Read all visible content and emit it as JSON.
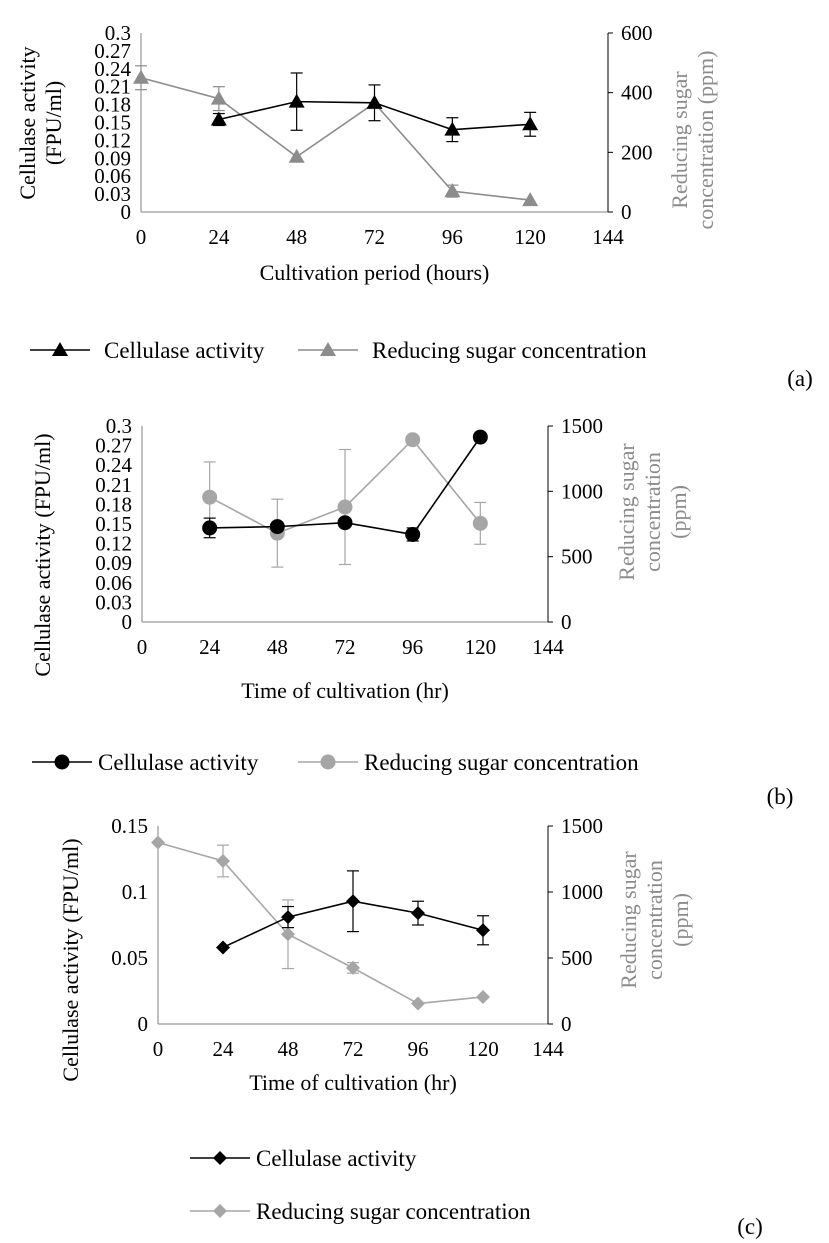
{
  "chart_data": [
    {
      "panel_label": "(a)",
      "type": "line",
      "xlabel": "Cultivation period (hours)",
      "ylabel_left": "Cellulase activity (FPU/ml)",
      "ylabel_right": "Reducing sugar concentration (ppm)",
      "xlim": [
        0,
        144
      ],
      "x_ticks": [
        0,
        24,
        48,
        72,
        96,
        120,
        144
      ],
      "ylim_left": [
        0,
        0.3
      ],
      "y_ticks_left": [
        "0",
        "0.03",
        "0.06",
        "0.09",
        "0.12",
        "0.15",
        "0.18",
        "0.21",
        "0.24",
        "0.27",
        "0.3"
      ],
      "ylim_right": [
        0,
        600
      ],
      "y_ticks_right": [
        "0",
        "200",
        "400",
        "600"
      ],
      "grid": false,
      "legend_position": "bottom",
      "series": [
        {
          "name": "Cellulase activity",
          "axis": "left",
          "marker": "triangle",
          "color": "#000000",
          "x": [
            24,
            48,
            72,
            96,
            120
          ],
          "y": [
            0.155,
            0.185,
            0.183,
            0.138,
            0.147
          ],
          "err": [
            0.01,
            0.048,
            0.03,
            0.02,
            0.02
          ]
        },
        {
          "name": "Reducing sugar concentration",
          "axis": "right",
          "marker": "triangle",
          "color": "#8c8c8c",
          "x": [
            0,
            24,
            48,
            72,
            96,
            120
          ],
          "y": [
            450,
            380,
            185,
            365,
            70,
            40
          ],
          "err": [
            40,
            40,
            0,
            0,
            20,
            0
          ]
        }
      ]
    },
    {
      "panel_label": "(b)",
      "type": "line",
      "xlabel": "Time of cultivation (hr)",
      "ylabel_left": "Cellulase activity (FPU/ml)",
      "ylabel_right": "Reducing sugar concentration (ppm)",
      "xlim": [
        0,
        144
      ],
      "x_ticks": [
        0,
        24,
        48,
        72,
        96,
        120,
        144
      ],
      "ylim_left": [
        0,
        0.3
      ],
      "y_ticks_left": [
        "0",
        "0.03",
        "0.06",
        "0.09",
        "0.12",
        "0.15",
        "0.18",
        "0.21",
        "0.24",
        "0.27",
        "0.3"
      ],
      "ylim_right": [
        0,
        1500
      ],
      "y_ticks_right": [
        "0",
        "500",
        "1000",
        "1500"
      ],
      "grid": false,
      "legend_position": "bottom",
      "series": [
        {
          "name": "Cellulase activity",
          "axis": "left",
          "marker": "circle",
          "color": "#000000",
          "x": [
            24,
            48,
            72,
            96,
            120
          ],
          "y": [
            0.144,
            0.146,
            0.152,
            0.134,
            0.283
          ],
          "err": [
            0.015,
            0.0,
            0.0,
            0.01,
            0.0
          ]
        },
        {
          "name": "Reducing sugar concentration",
          "axis": "right",
          "marker": "circle",
          "color": "#a6a6a6",
          "x": [
            24,
            48,
            72,
            96,
            120
          ],
          "y": [
            955,
            680,
            880,
            1395,
            755
          ],
          "err": [
            270,
            260,
            440,
            0,
            160
          ]
        }
      ]
    },
    {
      "panel_label": "(c)",
      "type": "line",
      "xlabel": "Time of cultivation (hr)",
      "ylabel_left": "Cellulase activity (FPU/ml)",
      "ylabel_right": "Reducing sugar concentration (ppm)",
      "xlim": [
        0,
        144
      ],
      "x_ticks": [
        0,
        24,
        48,
        72,
        96,
        120,
        144
      ],
      "ylim_left": [
        0,
        0.15
      ],
      "y_ticks_left": [
        "0",
        "0.05",
        "0.1",
        "0.15"
      ],
      "ylim_right": [
        0,
        1500
      ],
      "y_ticks_right": [
        "0",
        "500",
        "1000",
        "1500"
      ],
      "grid": false,
      "legend_position": "bottom",
      "series": [
        {
          "name": "Cellulase activity",
          "axis": "left",
          "marker": "diamond",
          "color": "#000000",
          "x": [
            24,
            48,
            72,
            96,
            120
          ],
          "y": [
            0.058,
            0.081,
            0.093,
            0.084,
            0.071
          ],
          "err": [
            0.0,
            0.008,
            0.023,
            0.009,
            0.011
          ]
        },
        {
          "name": "Reducing sugar concentration",
          "axis": "right",
          "marker": "diamond",
          "color": "#a6a6a6",
          "x": [
            0,
            24,
            48,
            72,
            96,
            120
          ],
          "y": [
            1375,
            1235,
            680,
            425,
            155,
            205
          ],
          "err": [
            0,
            120,
            260,
            40,
            0,
            0
          ]
        }
      ]
    }
  ]
}
